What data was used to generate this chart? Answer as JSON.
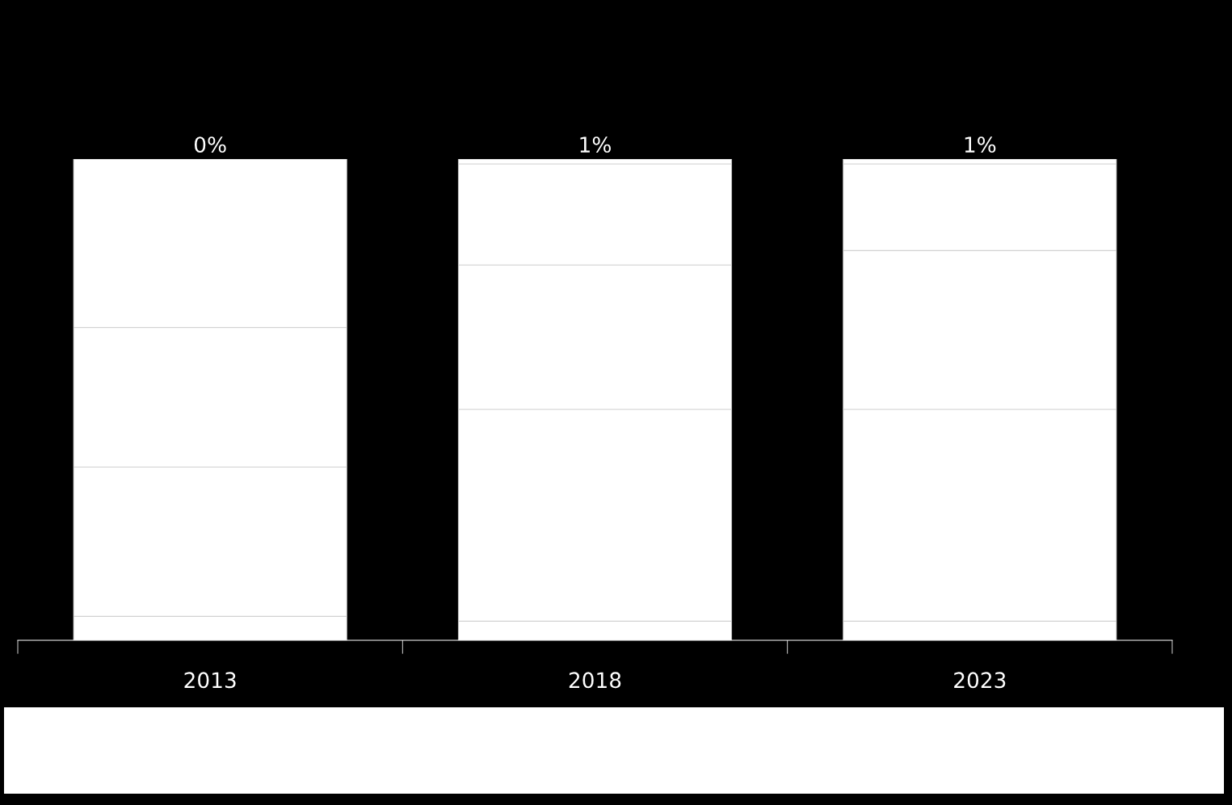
{
  "chart_data": {
    "type": "bar",
    "stacked": true,
    "categories": [
      "2013",
      "2018",
      "2023"
    ],
    "series": [
      {
        "color": "#ffffff",
        "values": [
          5,
          4,
          4
        ]
      },
      {
        "color": "#ffffff",
        "values": [
          31,
          44,
          44
        ]
      },
      {
        "color": "#ffffff",
        "values": [
          29,
          30,
          33
        ]
      },
      {
        "color": "#ffffff",
        "values": [
          35,
          21,
          18
        ]
      },
      {
        "color": "#ffffff",
        "values": [
          0,
          1,
          1
        ],
        "value_labels": [
          "0%",
          "1%",
          "1%"
        ]
      }
    ],
    "ylim": [
      0,
      100
    ],
    "grid": false
  }
}
